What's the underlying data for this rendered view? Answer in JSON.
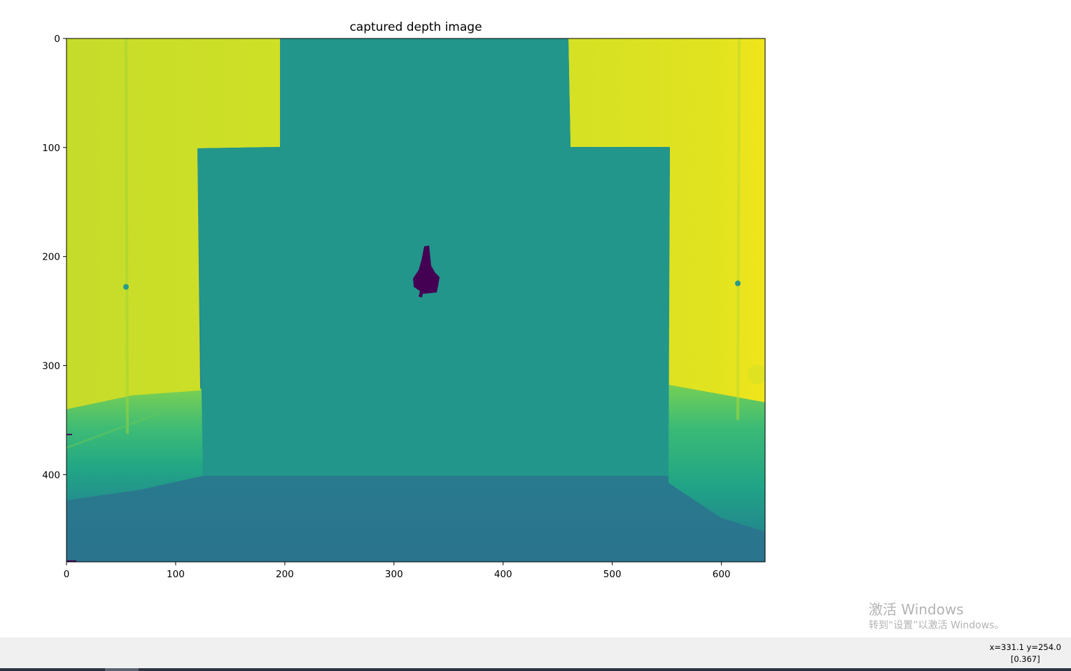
{
  "figure": {
    "title": "captured depth image"
  },
  "chart_data": {
    "type": "heatmap",
    "title": "captured depth image",
    "colormap": "viridis",
    "image_width": 640,
    "image_height": 480,
    "xlim": [
      0,
      640
    ],
    "ylim": [
      480,
      0
    ],
    "x_ticks": [
      0,
      100,
      200,
      300,
      400,
      500,
      600
    ],
    "y_ticks": [
      0,
      100,
      200,
      300,
      400
    ],
    "x_tick_labels": [
      "0",
      "100",
      "200",
      "300",
      "400",
      "500",
      "600"
    ],
    "y_tick_labels": [
      "0",
      "100",
      "200",
      "300",
      "400"
    ],
    "xlabel": "",
    "ylabel": "",
    "grid": false,
    "colors": {
      "far": "#e8e31f",
      "mid_far": "#cddf26",
      "wall": "#23968b",
      "floor_near": "#29798e",
      "green_floor": "#4fc36b",
      "hole": "#440154"
    }
  },
  "status": {
    "coords": "x=331.1 y=254.0",
    "value": "[0.367]"
  },
  "watermark": {
    "title": "激活 Windows",
    "subtitle": "转到“设置”以激活 Windows。"
  }
}
